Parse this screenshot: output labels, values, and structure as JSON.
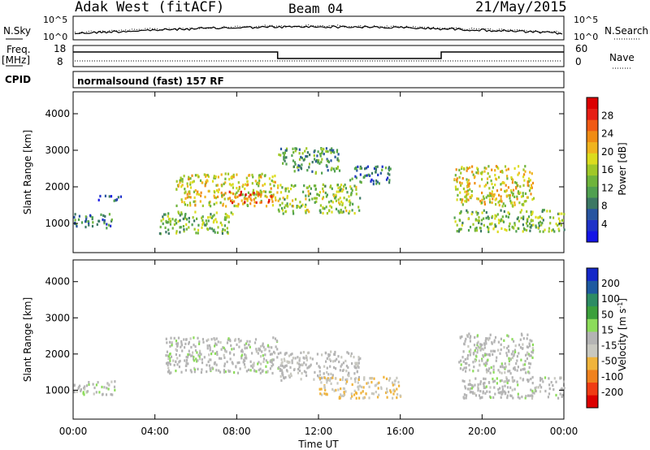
{
  "header": {
    "station": "Adak West (fitACF)",
    "beam": "Beam 04",
    "date": "21/May/2015"
  },
  "status_panels": {
    "nsky_label": "N.Sky",
    "nsky_ticks": [
      "10^5",
      "10^0"
    ],
    "nsearch_label": "N.Search",
    "nsearch_ticks": [
      "10^5",
      "10^0"
    ],
    "freq_label": "Freq.",
    "freq_unit": "[MHz]",
    "freq_ticks": [
      "18",
      "8"
    ],
    "nave_label": "Nave",
    "nave_ticks": [
      "60",
      "0"
    ],
    "cpid_label": "CPID",
    "cpid_text": "normalsound (fast) 157 RF",
    "freq_step_hours": [
      0,
      10,
      18,
      24
    ],
    "freq_mhz_steps": [
      16,
      12,
      16
    ]
  },
  "colorbars": {
    "power": {
      "label": "Power [dB]",
      "ticks": [
        "28",
        "24",
        "20",
        "16",
        "12",
        "8",
        "4"
      ],
      "colors": [
        "#1414e6",
        "#1e32c8",
        "#2855a0",
        "#3c7864",
        "#50a050",
        "#6eb43c",
        "#a0c828",
        "#dcdc1e",
        "#f0b41e",
        "#f08c14",
        "#f05a14",
        "#e61e14",
        "#dc0000"
      ]
    },
    "velocity": {
      "label": "Velocity [m s",
      "label_sup": "-1",
      "label_end": "]",
      "ticks": [
        "200",
        "100",
        "50",
        "15",
        "-15",
        "-50",
        "-100",
        "-200"
      ],
      "colors": [
        "#dc0000",
        "#f03c14",
        "#f0821e",
        "#f0b43c",
        "#c8c8c0",
        "#b4b4b4",
        "#8cdc5a",
        "#3ca03c",
        "#2d8c64",
        "#1e5aa0",
        "#1428c8"
      ]
    }
  },
  "chart_data": [
    {
      "type": "heatmap",
      "name": "Power",
      "xlabel": "Time UT",
      "ylabel": "Slant Range [km]",
      "ylim": [
        200,
        4600
      ],
      "xlim_hours": [
        0,
        24
      ],
      "x_ticks": [
        "00:00",
        "04:00",
        "08:00",
        "12:00",
        "16:00",
        "20:00",
        "00:00"
      ],
      "y_ticks": [
        "1000",
        "2000",
        "3000",
        "4000"
      ],
      "colorbar_ticks_db": [
        4,
        8,
        12,
        16,
        20,
        24,
        28
      ],
      "echo_regions": [
        {
          "t0": 0.0,
          "t1": 1.9,
          "r0": 900,
          "r1": 1300,
          "db": 9
        },
        {
          "t0": 1.0,
          "t1": 2.3,
          "r0": 1650,
          "r1": 1800,
          "db": 6
        },
        {
          "t0": 4.2,
          "t1": 7.8,
          "r0": 750,
          "r1": 1350,
          "db": 13
        },
        {
          "t0": 5.0,
          "t1": 10.0,
          "r0": 1500,
          "r1": 2400,
          "db": 17
        },
        {
          "t0": 7.5,
          "t1": 9.8,
          "r0": 1600,
          "r1": 1900,
          "db": 24
        },
        {
          "t0": 10.0,
          "t1": 14.0,
          "r0": 1300,
          "r1": 2100,
          "db": 14
        },
        {
          "t0": 10.0,
          "t1": 13.0,
          "r0": 2400,
          "r1": 3100,
          "db": 11
        },
        {
          "t0": 13.5,
          "t1": 15.5,
          "r0": 2100,
          "r1": 2600,
          "db": 8
        },
        {
          "t0": 18.6,
          "t1": 22.5,
          "r0": 1500,
          "r1": 2600,
          "db": 17
        },
        {
          "t0": 18.6,
          "t1": 24.0,
          "r0": 800,
          "r1": 1400,
          "db": 13
        }
      ]
    },
    {
      "type": "heatmap",
      "name": "Velocity",
      "xlabel": "Time UT",
      "ylabel": "Slant Range [km]",
      "ylim": [
        200,
        4600
      ],
      "xlim_hours": [
        0,
        24
      ],
      "x_ticks": [
        "00:00",
        "04:00",
        "08:00",
        "12:00",
        "16:00",
        "20:00",
        "00:00"
      ],
      "y_ticks": [
        "1000",
        "2000",
        "3000",
        "4000"
      ],
      "colorbar_ticks_ms": [
        200,
        100,
        50,
        15,
        -15,
        -50,
        -100,
        -200
      ],
      "echo_regions": [
        {
          "t0": 0.0,
          "t1": 2.0,
          "r0": 900,
          "r1": 1300,
          "v": 0
        },
        {
          "t0": 4.5,
          "t1": 10.0,
          "r0": 1500,
          "r1": 2500,
          "v": 0
        },
        {
          "t0": 10.0,
          "t1": 14.0,
          "r0": 1300,
          "r1": 2100,
          "v": -10
        },
        {
          "t0": 12.0,
          "t1": 16.0,
          "r0": 800,
          "r1": 1400,
          "v": -60
        },
        {
          "t0": 18.8,
          "t1": 22.5,
          "r0": 1500,
          "r1": 2600,
          "v": 0
        },
        {
          "t0": 19.0,
          "t1": 24.0,
          "r0": 800,
          "r1": 1400,
          "v": 0
        }
      ]
    }
  ]
}
